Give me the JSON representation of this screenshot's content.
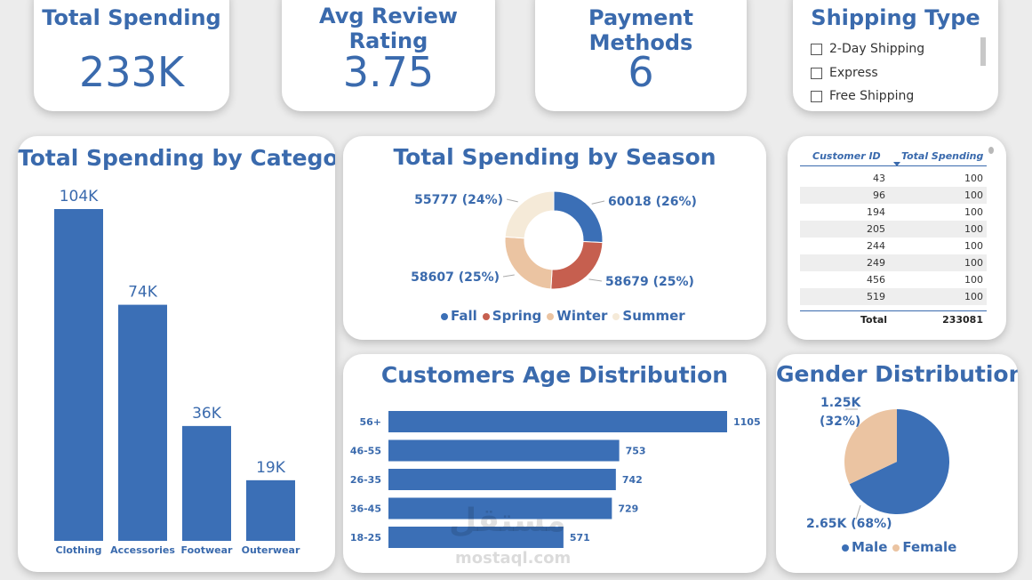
{
  "kpis": {
    "total_spending": {
      "title": "Total Spending",
      "value": "233K"
    },
    "avg_review": {
      "title": "Avg Review Rating",
      "value": "3.75"
    },
    "payment_methods": {
      "title": "Payment Methods",
      "value": "6"
    }
  },
  "shipping": {
    "title": "Shipping Type",
    "options": [
      "2-Day Shipping",
      "Express",
      "Free Shipping"
    ]
  },
  "category_chart": {
    "title": "Total Spending by Category",
    "chart_data": {
      "type": "bar",
      "categories": [
        "Clothing",
        "Accessories",
        "Footwear",
        "Outerwear"
      ],
      "values": [
        104,
        74,
        36,
        19
      ],
      "labels": [
        "104K",
        "74K",
        "36K",
        "19K"
      ],
      "ylim": [
        0,
        110
      ]
    }
  },
  "season_chart": {
    "title": "Total Spending by Season",
    "chart_data": {
      "type": "pie",
      "categories": [
        "Fall",
        "Spring",
        "Winter",
        "Summer"
      ],
      "values": [
        60018,
        58679,
        58607,
        55777
      ],
      "labels": [
        "60018 (26%)",
        "58679 (25%)",
        "58607 (25%)",
        "55777 (24%)"
      ],
      "colors": [
        "#3b6fb6",
        "#c65f4f",
        "#ebc4a2",
        "#f5ead8"
      ]
    }
  },
  "customer_table": {
    "headers": [
      "Customer ID",
      "Total Spending"
    ],
    "rows": [
      [
        "43",
        "100"
      ],
      [
        "96",
        "100"
      ],
      [
        "194",
        "100"
      ],
      [
        "205",
        "100"
      ],
      [
        "244",
        "100"
      ],
      [
        "249",
        "100"
      ],
      [
        "456",
        "100"
      ],
      [
        "519",
        "100"
      ]
    ],
    "total_label": "Total",
    "total_value": "233081"
  },
  "age_chart": {
    "title": "Customers Age Distribution",
    "chart_data": {
      "type": "bar",
      "orientation": "horizontal",
      "categories": [
        "56+",
        "46-55",
        "26-35",
        "36-45",
        "18-25"
      ],
      "values": [
        1105,
        753,
        742,
        729,
        571
      ],
      "xlim": [
        0,
        1105
      ]
    }
  },
  "gender_chart": {
    "title": "Gender Distribution",
    "chart_data": {
      "type": "pie",
      "categories": [
        "Male",
        "Female"
      ],
      "values": [
        2.65,
        1.25
      ],
      "labels": [
        "2.65K (68%)",
        "1.25K (32%)"
      ],
      "colors": [
        "#3b6fb6",
        "#ebc4a2"
      ]
    }
  },
  "watermark": {
    "arabic": "مستقل",
    "url": "mostaql.com"
  }
}
